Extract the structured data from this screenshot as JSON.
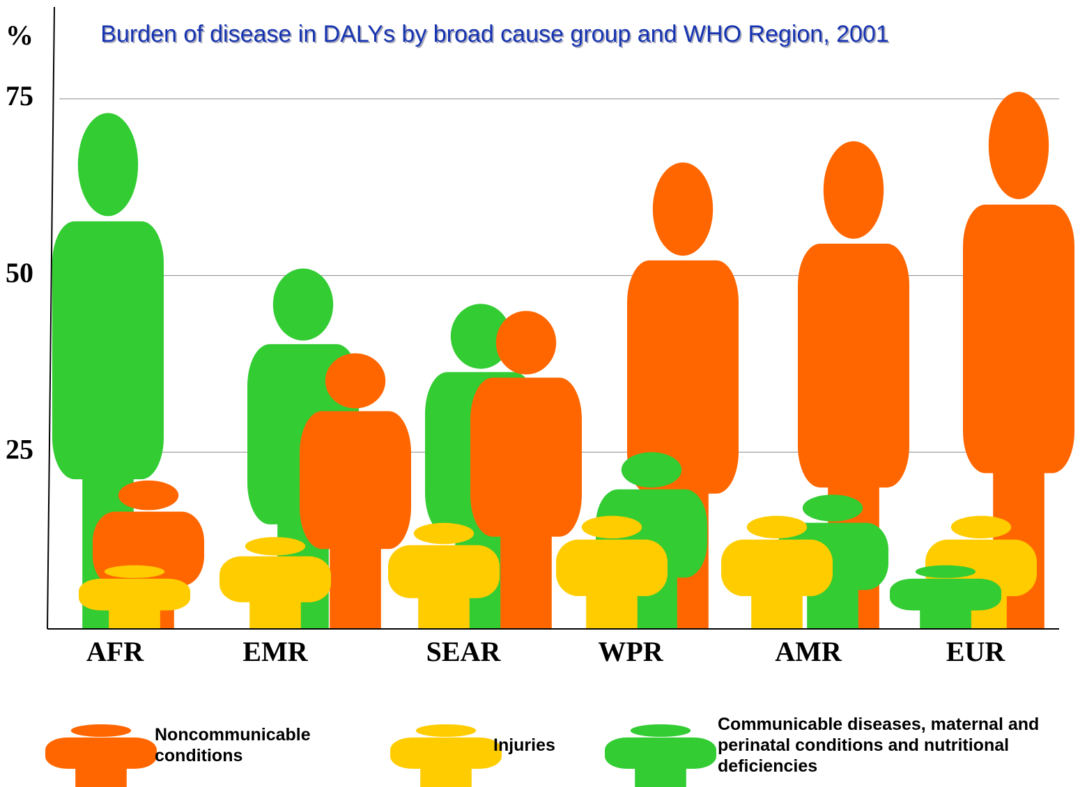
{
  "chart_data": {
    "type": "pictogram",
    "title": "Burden of disease in DALYs by broad cause group and WHO Region, 2001",
    "y_axis_label": "%",
    "categories": [
      "AFR",
      "EMR",
      "SEAR",
      "WPR",
      "AMR",
      "EUR"
    ],
    "series": [
      {
        "name": "Noncommunicable conditions",
        "color": "#ff6600",
        "values": [
          21,
          39,
          45,
          66,
          69,
          76
        ]
      },
      {
        "name": "Injuries",
        "color": "#ffcc00",
        "values": [
          9,
          13,
          15,
          16,
          16,
          16
        ]
      },
      {
        "name": "Communicable diseases, maternal and perinatal conditions and nutritional deficiencies",
        "color": "#33cc33",
        "values": [
          73,
          51,
          46,
          25,
          19,
          9
        ]
      }
    ],
    "ylim": [
      0,
      88
    ],
    "yticks": [
      25,
      50,
      75
    ],
    "grid": true
  }
}
